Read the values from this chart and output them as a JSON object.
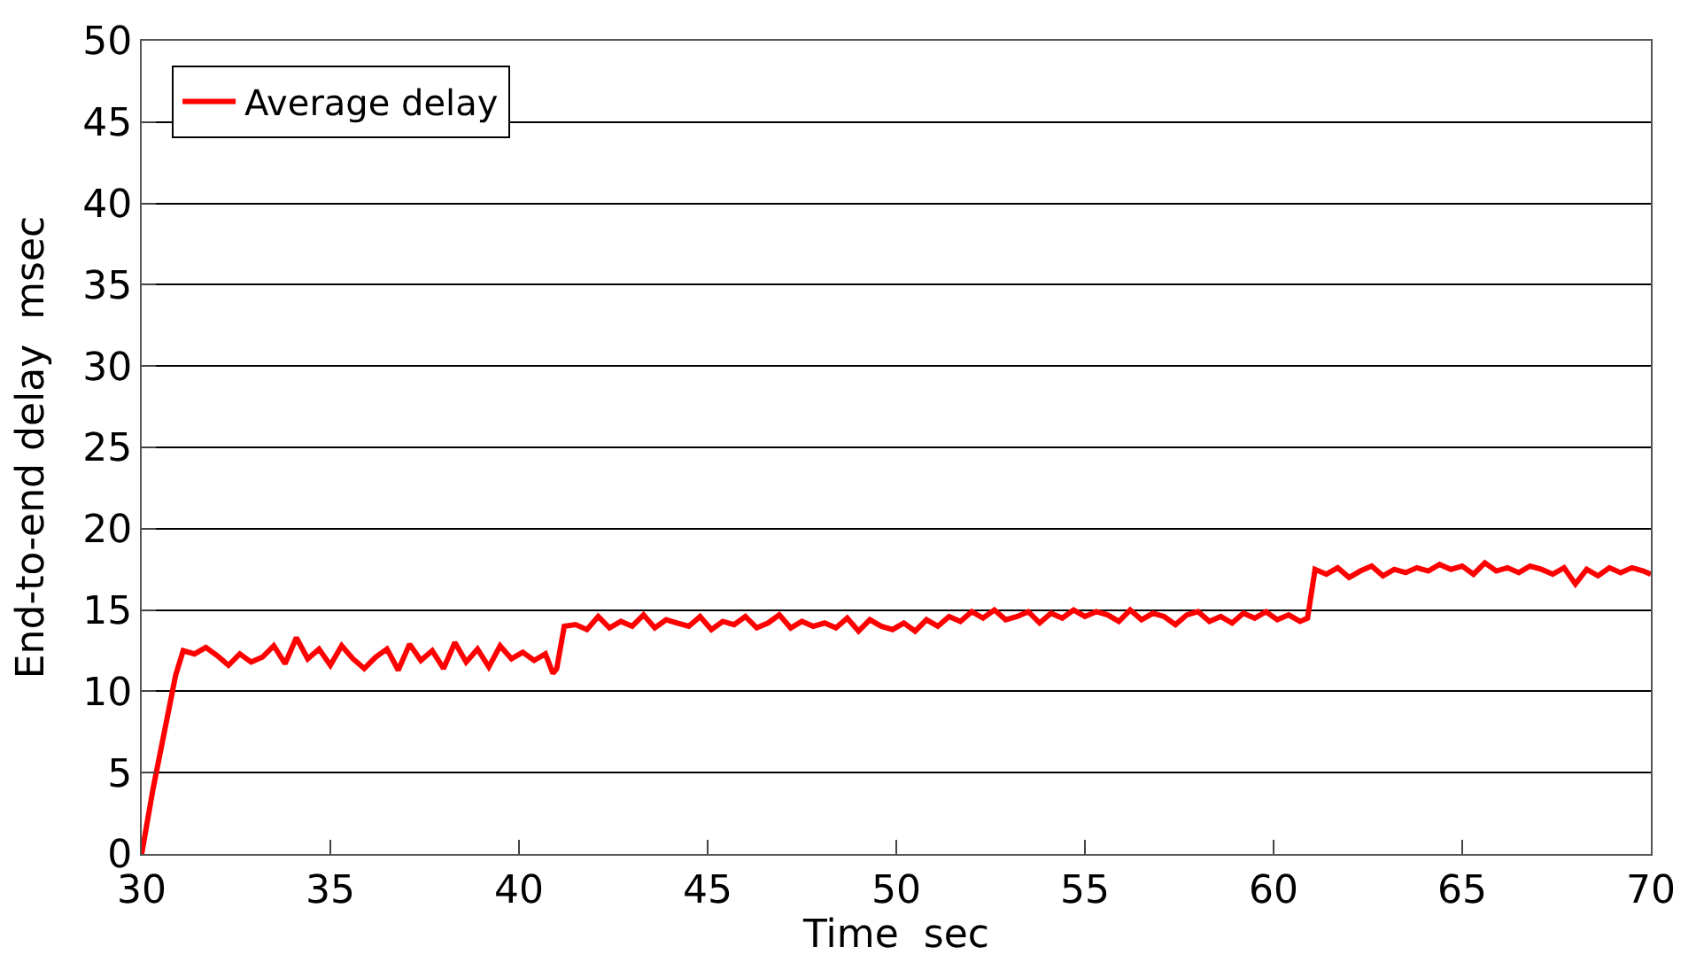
{
  "chart_data": {
    "type": "line",
    "xlabel": "Time  sec",
    "ylabel": "End-to-end delay  msec",
    "xlim": [
      30,
      70
    ],
    "xticks": [
      30,
      35,
      40,
      45,
      50,
      55,
      60,
      65,
      70
    ],
    "ylim": [
      0,
      50
    ],
    "yticks": [
      0,
      5,
      10,
      15,
      20,
      25,
      30,
      35,
      40,
      45,
      50
    ],
    "grid": "y",
    "legend": "top left",
    "marker": "none",
    "line_style": "solid",
    "series": [
      {
        "name": "Average delay",
        "color": "#ff0000",
        "x": [
          30,
          30.3,
          30.6,
          30.9,
          31.1,
          31.4,
          31.7,
          32.0,
          32.3,
          32.6,
          32.9,
          33.2,
          33.5,
          33.8,
          34.1,
          34.4,
          34.7,
          35.0,
          35.3,
          35.6,
          35.9,
          36.2,
          36.5,
          36.8,
          37.1,
          37.4,
          37.7,
          38.0,
          38.3,
          38.6,
          38.9,
          39.2,
          39.5,
          39.8,
          40.1,
          40.4,
          40.7,
          40.9,
          41.0,
          41.2,
          41.5,
          41.8,
          42.1,
          42.4,
          42.7,
          43.0,
          43.3,
          43.6,
          43.9,
          44.2,
          44.5,
          44.8,
          45.1,
          45.4,
          45.7,
          46.0,
          46.3,
          46.6,
          46.9,
          47.2,
          47.5,
          47.8,
          48.1,
          48.4,
          48.7,
          49.0,
          49.3,
          49.6,
          49.9,
          50.2,
          50.5,
          50.8,
          51.1,
          51.4,
          51.7,
          52.0,
          52.3,
          52.6,
          52.9,
          53.2,
          53.5,
          53.8,
          54.1,
          54.4,
          54.7,
          55.0,
          55.3,
          55.6,
          55.9,
          56.2,
          56.5,
          56.8,
          57.1,
          57.4,
          57.7,
          58.0,
          58.3,
          58.6,
          58.9,
          59.2,
          59.5,
          59.8,
          60.1,
          60.4,
          60.7,
          60.9,
          61.1,
          61.4,
          61.7,
          62.0,
          62.3,
          62.6,
          62.9,
          63.2,
          63.5,
          63.8,
          64.1,
          64.4,
          64.7,
          65.0,
          65.3,
          65.6,
          65.9,
          66.2,
          66.5,
          66.8,
          67.1,
          67.4,
          67.7,
          68.0,
          68.3,
          68.6,
          68.9,
          69.2,
          69.5,
          69.8,
          70.0
        ],
        "values": [
          0,
          4,
          7.5,
          11,
          12.5,
          12.3,
          12.7,
          12.2,
          11.6,
          12.3,
          11.8,
          12.1,
          12.8,
          11.7,
          13.3,
          12.0,
          12.6,
          11.6,
          12.8,
          12.0,
          11.4,
          12.1,
          12.6,
          11.3,
          12.9,
          11.9,
          12.5,
          11.4,
          13.0,
          11.8,
          12.6,
          11.5,
          12.8,
          12.0,
          12.4,
          11.9,
          12.3,
          11.1,
          11.4,
          14.0,
          14.1,
          13.8,
          14.6,
          13.9,
          14.3,
          14.0,
          14.7,
          13.9,
          14.4,
          14.2,
          14.0,
          14.6,
          13.8,
          14.3,
          14.1,
          14.6,
          13.9,
          14.2,
          14.7,
          13.9,
          14.3,
          14.0,
          14.2,
          13.9,
          14.5,
          13.7,
          14.4,
          14.0,
          13.8,
          14.2,
          13.7,
          14.4,
          14.0,
          14.6,
          14.3,
          14.9,
          14.5,
          15.0,
          14.4,
          14.6,
          14.9,
          14.2,
          14.8,
          14.5,
          15.0,
          14.6,
          14.9,
          14.7,
          14.3,
          15.0,
          14.4,
          14.8,
          14.6,
          14.1,
          14.7,
          14.9,
          14.3,
          14.6,
          14.2,
          14.8,
          14.5,
          14.9,
          14.4,
          14.7,
          14.3,
          14.5,
          17.5,
          17.2,
          17.6,
          17.0,
          17.4,
          17.7,
          17.1,
          17.5,
          17.3,
          17.6,
          17.4,
          17.8,
          17.5,
          17.7,
          17.2,
          17.9,
          17.4,
          17.6,
          17.3,
          17.7,
          17.5,
          17.2,
          17.6,
          16.6,
          17.5,
          17.1,
          17.6,
          17.3,
          17.6,
          17.4,
          17.2
        ]
      }
    ]
  }
}
